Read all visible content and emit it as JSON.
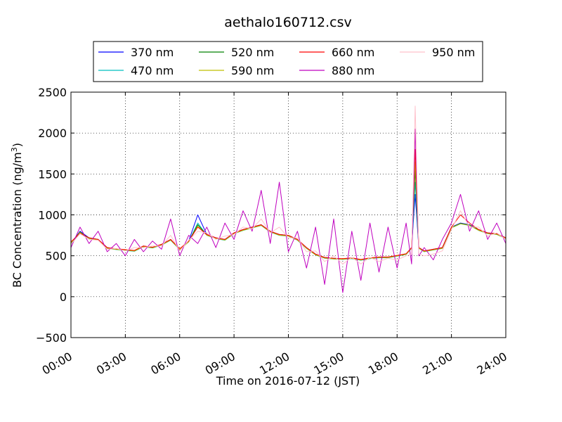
{
  "chart_data": {
    "type": "line",
    "title": "aethalo160712.csv",
    "xlabel": "Time on 2016-07-12 (JST)",
    "ylabel_main": "BC Concentration (ng/m",
    "ylabel_sup": "3",
    "ylabel_end": ")",
    "x_unit": "hours",
    "xlim": [
      0,
      24
    ],
    "ylim": [
      -500,
      2500
    ],
    "x_ticks": [
      0,
      3,
      6,
      9,
      12,
      15,
      18,
      21,
      24
    ],
    "x_tick_labels": [
      "00:00",
      "03:00",
      "06:00",
      "09:00",
      "12:00",
      "15:00",
      "18:00",
      "21:00",
      "24:00"
    ],
    "y_ticks": [
      -500,
      0,
      500,
      1000,
      1500,
      2000,
      2500
    ],
    "y_tick_labels": [
      "−500",
      "0",
      "500",
      "1000",
      "1500",
      "2000",
      "2500"
    ],
    "grid": true,
    "legend_position": "top-center",
    "series": [
      {
        "name": "370 nm",
        "color": "#0000ff",
        "x": [
          0,
          0.5,
          1,
          1.5,
          2,
          2.5,
          3,
          3.5,
          4,
          4.5,
          5,
          5.5,
          6,
          6.5,
          7,
          7.5,
          8,
          8.5,
          9,
          9.5,
          10,
          10.5,
          11,
          11.5,
          12,
          12.5,
          13,
          13.5,
          14,
          14.5,
          15,
          15.5,
          16,
          16.5,
          17,
          17.5,
          18,
          18.5,
          18.8,
          19,
          19.2,
          19.5,
          20,
          20.5,
          21,
          21.5,
          22,
          22.5,
          23,
          23.5,
          24
        ],
        "values": [
          650,
          800,
          720,
          700,
          600,
          580,
          570,
          560,
          620,
          600,
          640,
          700,
          580,
          680,
          1000,
          760,
          720,
          700,
          780,
          820,
          850,
          880,
          800,
          760,
          750,
          700,
          600,
          520,
          480,
          470,
          460,
          470,
          450,
          470,
          480,
          480,
          500,
          520,
          600,
          1250,
          600,
          560,
          580,
          600,
          850,
          900,
          880,
          820,
          780,
          770,
          720
        ]
      },
      {
        "name": "470 nm",
        "color": "#00bfbf",
        "x": [
          0,
          0.5,
          1,
          1.5,
          2,
          2.5,
          3,
          3.5,
          4,
          4.5,
          5,
          5.5,
          6,
          6.5,
          7,
          7.5,
          8,
          8.5,
          9,
          9.5,
          10,
          10.5,
          11,
          11.5,
          12,
          12.5,
          13,
          13.5,
          14,
          14.5,
          15,
          15.5,
          16,
          16.5,
          17,
          17.5,
          18,
          18.5,
          18.8,
          19,
          19.2,
          19.5,
          20,
          20.5,
          21,
          21.5,
          22,
          22.5,
          23,
          23.5,
          24
        ],
        "values": [
          640,
          780,
          710,
          690,
          590,
          575,
          565,
          555,
          610,
          595,
          630,
          690,
          575,
          670,
          900,
          750,
          710,
          690,
          770,
          810,
          840,
          870,
          790,
          750,
          740,
          690,
          590,
          510,
          470,
          460,
          455,
          465,
          445,
          465,
          475,
          475,
          495,
          515,
          590,
          1400,
          590,
          550,
          570,
          590,
          840,
          890,
          870,
          810,
          770,
          760,
          710
        ]
      },
      {
        "name": "520 nm",
        "color": "#008000",
        "x": [
          0,
          0.5,
          1,
          1.5,
          2,
          2.5,
          3,
          3.5,
          4,
          4.5,
          5,
          5.5,
          6,
          6.5,
          7,
          7.5,
          8,
          8.5,
          9,
          9.5,
          10,
          10.5,
          11,
          11.5,
          12,
          12.5,
          13,
          13.5,
          14,
          14.5,
          15,
          15.5,
          16,
          16.5,
          17,
          17.5,
          18,
          18.5,
          18.8,
          19,
          19.2,
          19.5,
          20,
          20.5,
          21,
          21.5,
          22,
          22.5,
          23,
          23.5,
          24
        ],
        "values": [
          660,
          790,
          715,
          695,
          595,
          580,
          570,
          560,
          615,
          600,
          635,
          695,
          580,
          675,
          880,
          755,
          715,
          695,
          775,
          815,
          845,
          875,
          795,
          755,
          745,
          695,
          595,
          515,
          475,
          465,
          460,
          470,
          450,
          470,
          480,
          480,
          500,
          520,
          595,
          1550,
          595,
          555,
          575,
          595,
          845,
          895,
          875,
          815,
          775,
          765,
          715
        ]
      },
      {
        "name": "590 nm",
        "color": "#bfbf00",
        "x": [
          0,
          0.5,
          1,
          1.5,
          2,
          2.5,
          3,
          3.5,
          4,
          4.5,
          5,
          5.5,
          6,
          6.5,
          7,
          7.5,
          8,
          8.5,
          9,
          9.5,
          10,
          10.5,
          11,
          11.5,
          12,
          12.5,
          13,
          13.5,
          14,
          14.5,
          15,
          15.5,
          16,
          16.5,
          17,
          17.5,
          18,
          18.5,
          18.8,
          19,
          19.2,
          19.5,
          20,
          20.5,
          21,
          21.5,
          22,
          22.5,
          23,
          23.5,
          24
        ],
        "values": [
          655,
          785,
          712,
          692,
          592,
          578,
          568,
          558,
          612,
          598,
          632,
          692,
          578,
          672,
          860,
          752,
          712,
          692,
          772,
          812,
          842,
          872,
          792,
          752,
          742,
          692,
          592,
          512,
          472,
          462,
          458,
          468,
          448,
          468,
          478,
          478,
          498,
          518,
          592,
          1650,
          592,
          552,
          572,
          592,
          842,
          892,
          872,
          812,
          772,
          762,
          712
        ]
      },
      {
        "name": "660 nm",
        "color": "#ff0000",
        "x": [
          0,
          0.5,
          1,
          1.5,
          2,
          2.5,
          3,
          3.5,
          4,
          4.5,
          5,
          5.5,
          6,
          6.5,
          7,
          7.5,
          8,
          8.5,
          9,
          9.5,
          10,
          10.5,
          11,
          11.5,
          12,
          12.5,
          13,
          13.5,
          14,
          14.5,
          15,
          15.5,
          16,
          16.5,
          17,
          17.5,
          18,
          18.5,
          18.8,
          19,
          19.2,
          19.5,
          20,
          20.5,
          21,
          21.5,
          22,
          22.5,
          23,
          23.5,
          24
        ],
        "values": [
          670,
          775,
          720,
          700,
          600,
          585,
          575,
          565,
          620,
          605,
          640,
          700,
          585,
          680,
          850,
          760,
          720,
          700,
          780,
          820,
          850,
          880,
          800,
          760,
          750,
          700,
          600,
          520,
          480,
          470,
          465,
          475,
          455,
          475,
          485,
          485,
          505,
          525,
          600,
          1800,
          600,
          560,
          580,
          600,
          850,
          1000,
          900,
          820,
          780,
          770,
          720
        ]
      },
      {
        "name": "880 nm",
        "color": "#bf00bf",
        "x": [
          0,
          0.5,
          1,
          1.5,
          2,
          2.5,
          3,
          3.5,
          4,
          4.5,
          5,
          5.5,
          6,
          6.5,
          7,
          7.5,
          8,
          8.5,
          9,
          9.5,
          10,
          10.5,
          11,
          11.5,
          12,
          12.5,
          13,
          13.5,
          14,
          14.5,
          15,
          15.5,
          16,
          16.5,
          17,
          17.5,
          18,
          18.5,
          18.8,
          19,
          19.2,
          19.5,
          20,
          20.5,
          21,
          21.5,
          22,
          22.5,
          23,
          23.5,
          24
        ],
        "values": [
          600,
          850,
          650,
          800,
          550,
          650,
          500,
          700,
          550,
          680,
          580,
          950,
          500,
          750,
          650,
          850,
          600,
          900,
          700,
          1050,
          800,
          1300,
          650,
          1400,
          550,
          800,
          350,
          850,
          150,
          950,
          50,
          800,
          200,
          900,
          300,
          850,
          350,
          900,
          400,
          2050,
          500,
          600,
          450,
          700,
          900,
          1250,
          800,
          1050,
          700,
          900,
          650
        ]
      },
      {
        "name": "950 nm",
        "color": "#ffc0cb",
        "x": [
          0,
          0.5,
          1,
          1.5,
          2,
          2.5,
          3,
          3.5,
          4,
          4.5,
          5,
          5.5,
          6,
          6.5,
          7,
          7.5,
          8,
          8.5,
          9,
          9.5,
          10,
          10.5,
          11,
          11.5,
          12,
          12.5,
          13,
          13.5,
          14,
          14.5,
          15,
          15.5,
          16,
          16.5,
          17,
          17.5,
          18,
          18.5,
          18.8,
          19,
          19.2,
          19.5,
          20,
          20.5,
          21,
          21.5,
          22,
          22.5,
          23,
          23.5,
          24
        ],
        "values": [
          640,
          770,
          700,
          690,
          580,
          590,
          560,
          600,
          600,
          620,
          620,
          750,
          560,
          690,
          800,
          780,
          700,
          740,
          760,
          850,
          830,
          950,
          780,
          850,
          720,
          720,
          550,
          560,
          430,
          500,
          400,
          480,
          400,
          480,
          430,
          470,
          450,
          500,
          520,
          2330,
          520,
          500,
          520,
          560,
          820,
          1050,
          850,
          850,
          740,
          780,
          700
        ]
      }
    ]
  }
}
